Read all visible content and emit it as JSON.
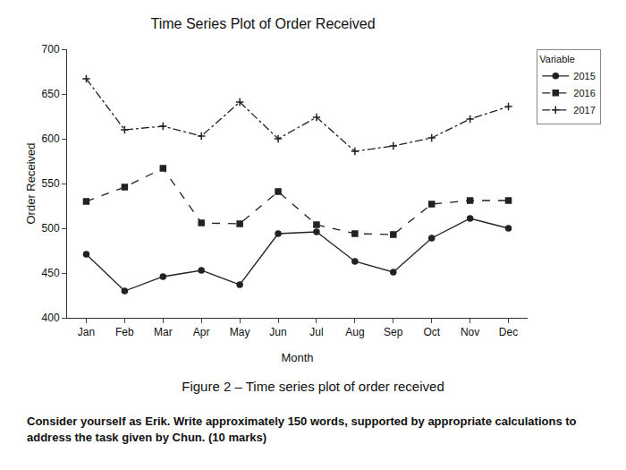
{
  "chart_data": {
    "type": "line",
    "title": "Time Series Plot of Order Received",
    "x_label": "Month",
    "y_label": "Order Received",
    "legend_title": "Variable",
    "categories": [
      "Jan",
      "Feb",
      "Mar",
      "Apr",
      "May",
      "Jun",
      "Jul",
      "Aug",
      "Sep",
      "Oct",
      "Nov",
      "Dec"
    ],
    "series": [
      {
        "name": "2015",
        "color": "#222222",
        "line_style": "solid",
        "marker": "circle",
        "values": [
          471,
          430,
          446,
          453,
          437,
          494,
          496,
          463,
          451,
          489,
          511,
          500
        ]
      },
      {
        "name": "2016",
        "color": "#222222",
        "line_style": "dash",
        "marker": "square",
        "values": [
          530,
          546,
          567,
          506,
          505,
          541,
          504,
          494,
          493,
          527,
          531,
          531
        ]
      },
      {
        "name": "2017",
        "color": "#222222",
        "line_style": "dashdot",
        "marker": "plus",
        "values": [
          667,
          610,
          614,
          603,
          641,
          600,
          624,
          586,
          592,
          601,
          622,
          636
        ]
      }
    ],
    "ylim": [
      400,
      700
    ],
    "yticks": [
      400,
      450,
      500,
      550,
      600,
      650,
      700
    ],
    "grid": false,
    "legend": "right"
  },
  "caption": "Figure 2 – Time series plot of order received",
  "instruction": "Consider yourself as Erik. Write approximately 150 words, supported by appropriate calculations to address the task given by Chun. (10 marks)"
}
